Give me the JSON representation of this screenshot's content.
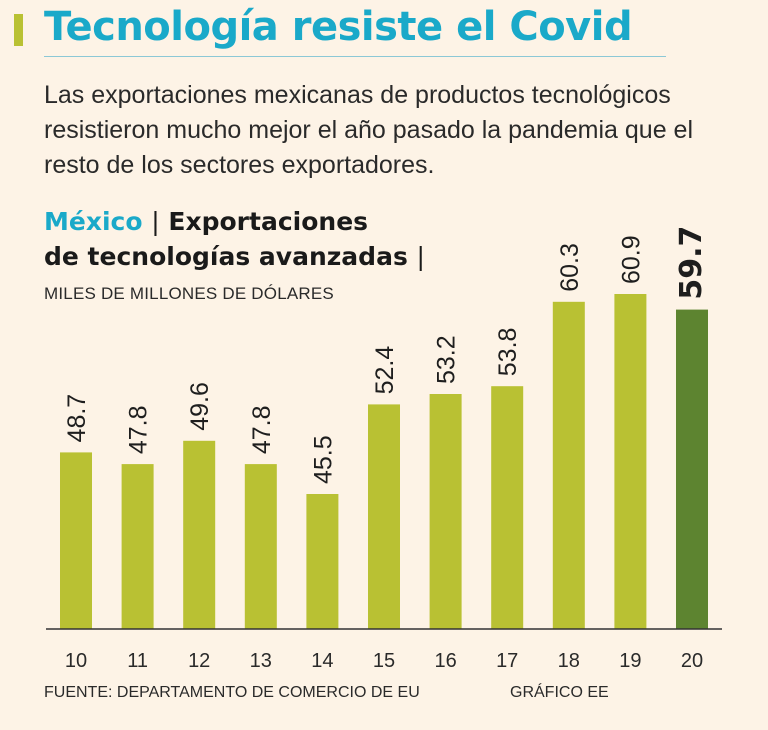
{
  "header": {
    "title": "Tecnología resiste el Covid",
    "subtitle": "Las exportaciones mexicanas de productos tecnológicos resistieron mucho mejor el año pasado la pandemia que el resto de los sectores exportadores."
  },
  "chart_heading": {
    "country": "México",
    "separator": "|",
    "line1": "Exportaciones",
    "line2": "de tecnologías avanzadas",
    "units": "MILES DE MILLONES DE DÓLARES"
  },
  "chart_data": {
    "type": "bar",
    "title": "Exportaciones de tecnologías avanzadas",
    "ylabel": "MILES DE MILLONES DE DÓLARES",
    "xlabel": "",
    "categories": [
      "10",
      "11",
      "12",
      "13",
      "14",
      "15",
      "16",
      "17",
      "18",
      "19",
      "20"
    ],
    "values": [
      48.7,
      47.8,
      49.6,
      47.8,
      45.5,
      52.4,
      53.2,
      53.8,
      60.3,
      60.9,
      59.7
    ],
    "value_labels": [
      "48.7",
      "47.8",
      "49.6",
      "47.8",
      "45.5",
      "52.4",
      "53.2",
      "53.8",
      "60.3",
      "60.9",
      "59.7"
    ],
    "highlight_index": 10,
    "colors": {
      "bar": "#b9c133",
      "highlight": "#5d8430",
      "axis": "#333333"
    }
  },
  "footer": {
    "source": "FUENTE: DEPARTAMENTO DE COMERCIO DE EU",
    "credit": "GRÁFICO EE"
  }
}
